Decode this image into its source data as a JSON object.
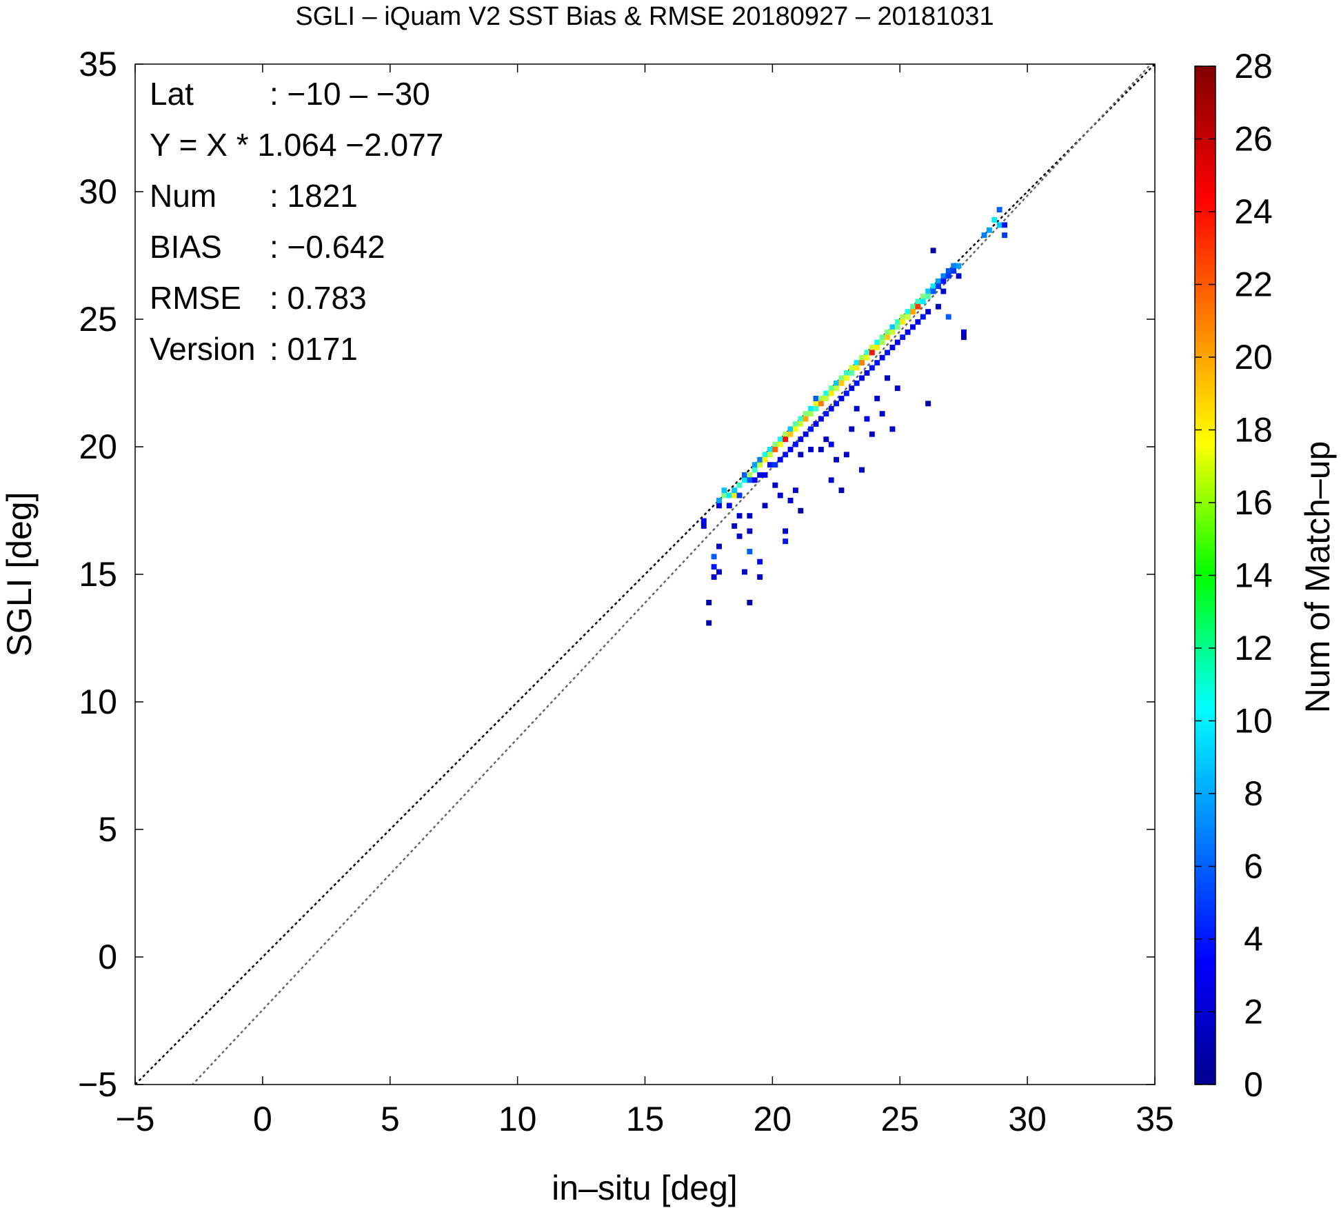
{
  "chart_data": {
    "type": "heatmap",
    "title": "SGLI – iQuam V2 SST Bias & RMSE 20180927 – 20181031",
    "xlabel": "in–situ [deg]",
    "ylabel": "SGLI [deg]",
    "xlim": [
      -5,
      35
    ],
    "ylim": [
      -5,
      35
    ],
    "x_ticks": [
      "−5",
      "0",
      "5",
      "10",
      "15",
      "20",
      "25",
      "30",
      "35"
    ],
    "y_ticks": [
      "−5",
      "0",
      "5",
      "10",
      "15",
      "20",
      "25",
      "30",
      "35"
    ],
    "x_tick_values": [
      -5,
      0,
      5,
      10,
      15,
      20,
      25,
      30,
      35
    ],
    "y_tick_values": [
      -5,
      0,
      5,
      10,
      15,
      20,
      25,
      30,
      35
    ],
    "colorbar": {
      "label": "Num of Match–up",
      "min": 0,
      "max": 28,
      "ticks": [
        "0",
        "2",
        "4",
        "6",
        "8",
        "10",
        "12",
        "14",
        "16",
        "18",
        "20",
        "22",
        "24",
        "26",
        "28"
      ],
      "tick_values": [
        0,
        2,
        4,
        6,
        8,
        10,
        12,
        14,
        16,
        18,
        20,
        22,
        24,
        26,
        28
      ]
    },
    "reference_lines": [
      {
        "type": "one-to-one",
        "slope": 1,
        "intercept": 0,
        "color": "#000000",
        "style": "dotted"
      },
      {
        "type": "regression",
        "slope": 1.064,
        "intercept": -2.077,
        "color": "#666666",
        "style": "dotted"
      }
    ],
    "stats": [
      {
        "label": "Lat",
        "value": ": −10 – −30"
      },
      {
        "label": "Y = X * 1.064 −2.077",
        "value": ""
      },
      {
        "label": "Num",
        "value": ": 1821"
      },
      {
        "label": "BIAS",
        "value": ": −0.642"
      },
      {
        "label": "RMSE",
        "value": ": 0.783"
      },
      {
        "label": "Version",
        "value": ": 0171"
      }
    ],
    "bin_size": 0.2,
    "points": [
      [
        17.2,
        16.8,
        2
      ],
      [
        17.2,
        17.0,
        3
      ],
      [
        17.4,
        13.0,
        1
      ],
      [
        17.4,
        13.8,
        1
      ],
      [
        17.6,
        14.8,
        2
      ],
      [
        17.6,
        15.2,
        4
      ],
      [
        17.6,
        15.6,
        6
      ],
      [
        17.8,
        15.0,
        2
      ],
      [
        17.8,
        16.0,
        2
      ],
      [
        17.8,
        17.6,
        3
      ],
      [
        17.8,
        17.8,
        8
      ],
      [
        18.0,
        18.0,
        14
      ],
      [
        18.0,
        18.2,
        9
      ],
      [
        18.2,
        18.0,
        10
      ],
      [
        18.2,
        17.6,
        3
      ],
      [
        18.4,
        18.0,
        18
      ],
      [
        18.4,
        18.2,
        9
      ],
      [
        18.4,
        16.8,
        2
      ],
      [
        18.6,
        18.4,
        12
      ],
      [
        18.6,
        18.0,
        5
      ],
      [
        18.6,
        17.2,
        2
      ],
      [
        18.6,
        16.4,
        2
      ],
      [
        18.8,
        18.6,
        10
      ],
      [
        18.8,
        18.8,
        6
      ],
      [
        18.8,
        15.0,
        2
      ],
      [
        19.0,
        18.8,
        15
      ],
      [
        19.0,
        18.6,
        6
      ],
      [
        19.0,
        17.2,
        2
      ],
      [
        19.0,
        16.6,
        2
      ],
      [
        19.0,
        15.8,
        6
      ],
      [
        19.0,
        13.8,
        1
      ],
      [
        19.2,
        19.0,
        12
      ],
      [
        19.2,
        19.2,
        8
      ],
      [
        19.2,
        18.6,
        3
      ],
      [
        19.4,
        19.2,
        16
      ],
      [
        19.4,
        19.4,
        7
      ],
      [
        19.4,
        18.8,
        3
      ],
      [
        19.4,
        15.4,
        3
      ],
      [
        19.4,
        14.8,
        2
      ],
      [
        19.6,
        19.6,
        11
      ],
      [
        19.6,
        19.4,
        18
      ],
      [
        19.6,
        18.8,
        3
      ],
      [
        19.6,
        17.6,
        2
      ],
      [
        19.8,
        19.8,
        10
      ],
      [
        19.8,
        19.6,
        16
      ],
      [
        19.8,
        19.2,
        4
      ],
      [
        20.0,
        20.0,
        14
      ],
      [
        20.0,
        19.8,
        22
      ],
      [
        20.0,
        19.2,
        5
      ],
      [
        20.0,
        18.4,
        2
      ],
      [
        20.2,
        20.2,
        11
      ],
      [
        20.2,
        20.0,
        17
      ],
      [
        20.2,
        19.4,
        3
      ],
      [
        20.2,
        18.0,
        2
      ],
      [
        20.4,
        20.4,
        15
      ],
      [
        20.4,
        20.2,
        24
      ],
      [
        20.4,
        19.6,
        4
      ],
      [
        20.4,
        16.6,
        2
      ],
      [
        20.4,
        16.2,
        4
      ],
      [
        20.6,
        20.6,
        9
      ],
      [
        20.6,
        20.4,
        19
      ],
      [
        20.6,
        19.8,
        3
      ],
      [
        20.6,
        17.8,
        2
      ],
      [
        20.8,
        20.8,
        13
      ],
      [
        20.8,
        20.6,
        17
      ],
      [
        20.8,
        20.0,
        4
      ],
      [
        20.8,
        18.2,
        2
      ],
      [
        21.0,
        21.0,
        12
      ],
      [
        21.0,
        20.8,
        16
      ],
      [
        21.0,
        20.2,
        3
      ],
      [
        21.0,
        19.6,
        2
      ],
      [
        21.0,
        17.4,
        1
      ],
      [
        21.2,
        21.2,
        14
      ],
      [
        21.2,
        21.0,
        20
      ],
      [
        21.2,
        20.4,
        3
      ],
      [
        21.4,
        21.4,
        10
      ],
      [
        21.4,
        21.2,
        15
      ],
      [
        21.4,
        20.6,
        4
      ],
      [
        21.4,
        19.8,
        2
      ],
      [
        21.6,
        21.6,
        17
      ],
      [
        21.6,
        21.4,
        12
      ],
      [
        21.6,
        20.8,
        3
      ],
      [
        21.6,
        21.8,
        6
      ],
      [
        21.8,
        21.8,
        15
      ],
      [
        21.8,
        21.6,
        21
      ],
      [
        21.8,
        21.0,
        3
      ],
      [
        21.8,
        19.8,
        2
      ],
      [
        22.0,
        22.0,
        11
      ],
      [
        22.0,
        21.8,
        16
      ],
      [
        22.0,
        21.2,
        4
      ],
      [
        22.0,
        20.2,
        2
      ],
      [
        22.2,
        22.2,
        13
      ],
      [
        22.2,
        22.0,
        18
      ],
      [
        22.2,
        21.4,
        3
      ],
      [
        22.2,
        20.0,
        3
      ],
      [
        22.2,
        18.6,
        2
      ],
      [
        22.4,
        22.4,
        9
      ],
      [
        22.4,
        22.2,
        16
      ],
      [
        22.4,
        21.6,
        4
      ],
      [
        22.4,
        19.4,
        2
      ],
      [
        22.6,
        22.6,
        14
      ],
      [
        22.6,
        22.4,
        19
      ],
      [
        22.6,
        21.8,
        3
      ],
      [
        22.6,
        18.2,
        1
      ],
      [
        22.8,
        22.8,
        12
      ],
      [
        22.8,
        22.6,
        17
      ],
      [
        22.8,
        22.0,
        4
      ],
      [
        22.8,
        19.6,
        2
      ],
      [
        23.0,
        23.0,
        16
      ],
      [
        23.0,
        22.8,
        13
      ],
      [
        23.0,
        22.2,
        3
      ],
      [
        23.0,
        20.6,
        2
      ],
      [
        23.2,
        23.2,
        10
      ],
      [
        23.2,
        23.0,
        18
      ],
      [
        23.2,
        22.4,
        4
      ],
      [
        23.2,
        21.4,
        2
      ],
      [
        23.4,
        23.4,
        15
      ],
      [
        23.4,
        23.2,
        21
      ],
      [
        23.4,
        22.6,
        3
      ],
      [
        23.4,
        19.0,
        2
      ],
      [
        23.6,
        23.6,
        12
      ],
      [
        23.6,
        23.4,
        17
      ],
      [
        23.6,
        22.8,
        3
      ],
      [
        23.6,
        21.0,
        3
      ],
      [
        23.8,
        23.8,
        16
      ],
      [
        23.8,
        23.6,
        24
      ],
      [
        23.8,
        23.0,
        4
      ],
      [
        23.8,
        20.4,
        2
      ],
      [
        24.0,
        24.0,
        11
      ],
      [
        24.0,
        23.8,
        18
      ],
      [
        24.0,
        23.2,
        4
      ],
      [
        24.0,
        21.8,
        2
      ],
      [
        24.2,
        24.2,
        13
      ],
      [
        24.2,
        24.0,
        15
      ],
      [
        24.2,
        23.4,
        3
      ],
      [
        24.2,
        21.2,
        2
      ],
      [
        24.4,
        24.4,
        14
      ],
      [
        24.4,
        24.2,
        19
      ],
      [
        24.4,
        23.6,
        4
      ],
      [
        24.4,
        22.6,
        2
      ],
      [
        24.6,
        24.6,
        9
      ],
      [
        24.6,
        24.4,
        16
      ],
      [
        24.6,
        23.8,
        3
      ],
      [
        24.6,
        20.6,
        2
      ],
      [
        24.8,
        24.8,
        12
      ],
      [
        24.8,
        24.6,
        14
      ],
      [
        24.8,
        24.0,
        3
      ],
      [
        24.8,
        22.2,
        2
      ],
      [
        25.0,
        25.0,
        15
      ],
      [
        25.0,
        24.8,
        18
      ],
      [
        25.0,
        24.2,
        4
      ],
      [
        25.2,
        25.2,
        11
      ],
      [
        25.2,
        25.0,
        16
      ],
      [
        25.2,
        24.4,
        3
      ],
      [
        25.4,
        25.4,
        13
      ],
      [
        25.4,
        25.2,
        20
      ],
      [
        25.4,
        24.6,
        3
      ],
      [
        25.6,
        25.6,
        12
      ],
      [
        25.6,
        25.4,
        23
      ],
      [
        25.6,
        24.8,
        3
      ],
      [
        25.8,
        25.8,
        14
      ],
      [
        25.8,
        25.6,
        10
      ],
      [
        25.8,
        25.0,
        4
      ],
      [
        26.0,
        26.0,
        9
      ],
      [
        26.0,
        25.8,
        13
      ],
      [
        26.0,
        25.2,
        2
      ],
      [
        26.0,
        21.6,
        1
      ],
      [
        26.2,
        26.2,
        10
      ],
      [
        26.2,
        26.0,
        6
      ],
      [
        26.2,
        27.6,
        1
      ],
      [
        26.4,
        26.4,
        8
      ],
      [
        26.4,
        26.2,
        5
      ],
      [
        26.4,
        25.4,
        2
      ],
      [
        26.6,
        26.6,
        7
      ],
      [
        26.6,
        26.4,
        4
      ],
      [
        26.6,
        26.0,
        2
      ],
      [
        26.8,
        26.8,
        6
      ],
      [
        26.8,
        26.6,
        5
      ],
      [
        26.8,
        25.0,
        6
      ],
      [
        27.0,
        27.0,
        7
      ],
      [
        27.0,
        26.8,
        5
      ],
      [
        27.2,
        27.0,
        8
      ],
      [
        27.2,
        26.6,
        2
      ],
      [
        27.4,
        24.4,
        2
      ],
      [
        27.4,
        24.2,
        1
      ],
      [
        28.2,
        28.2,
        7
      ],
      [
        28.4,
        28.4,
        8
      ],
      [
        28.6,
        28.8,
        10
      ],
      [
        28.8,
        29.2,
        6
      ],
      [
        28.8,
        28.6,
        9
      ],
      [
        29.0,
        28.2,
        5
      ],
      [
        29.0,
        28.6,
        4
      ]
    ]
  }
}
